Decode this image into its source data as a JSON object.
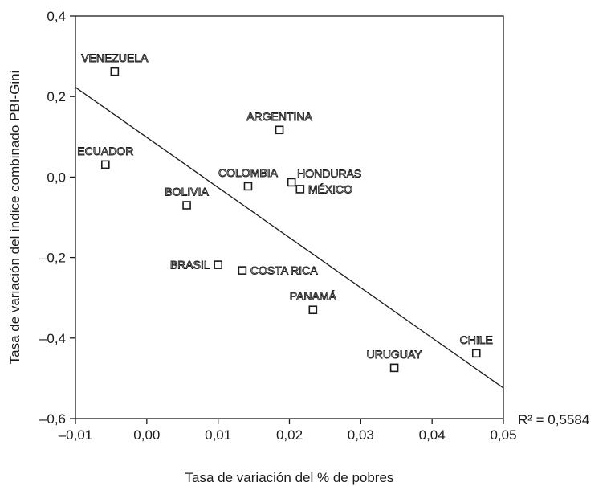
{
  "chart_data": {
    "type": "scatter",
    "title": "",
    "xlabel": "Tasa de variación del % de pobres",
    "ylabel": "Tasa de variación del índice combinado PBI-Gini",
    "xlim": [
      -0.01,
      0.05
    ],
    "ylim": [
      -0.6,
      0.4
    ],
    "x_ticks": [
      -0.01,
      0.0,
      0.01,
      0.02,
      0.03,
      0.04,
      0.05
    ],
    "x_tick_labels": [
      "–0,01",
      "0,00",
      "0,01",
      "0,02",
      "0,03",
      "0,04",
      "0,05"
    ],
    "y_ticks": [
      0.4,
      0.2,
      0.0,
      -0.2,
      -0.4,
      -0.6
    ],
    "y_tick_labels": [
      "0,4",
      "0,2",
      "0,0",
      "–0,2",
      "–0,4",
      "–0,6"
    ],
    "grid": false,
    "legend": "none",
    "marker": "open-square",
    "points": [
      {
        "label": "VENEZUELA",
        "x": -0.0045,
        "y": 0.262,
        "label_pos": "above"
      },
      {
        "label": "ECUADOR",
        "x": -0.0058,
        "y": 0.031,
        "label_pos": "above"
      },
      {
        "label": "ARGENTINA",
        "x": 0.0186,
        "y": 0.117,
        "label_pos": "above"
      },
      {
        "label": "COLOMBIA",
        "x": 0.0142,
        "y": -0.023,
        "label_pos": "above"
      },
      {
        "label": "HONDURAS",
        "x": 0.0203,
        "y": -0.013,
        "label_pos": "upper-right"
      },
      {
        "label": "MÉXICO",
        "x": 0.0215,
        "y": -0.03,
        "label_pos": "right"
      },
      {
        "label": "BOLIVIA",
        "x": 0.0056,
        "y": -0.07,
        "label_pos": "above"
      },
      {
        "label": "BRASIL",
        "x": 0.01,
        "y": -0.218,
        "label_pos": "left"
      },
      {
        "label": "COSTA RICA",
        "x": 0.0134,
        "y": -0.232,
        "label_pos": "right"
      },
      {
        "label": "PANAMÁ",
        "x": 0.0233,
        "y": -0.33,
        "label_pos": "above"
      },
      {
        "label": "URUGUAY",
        "x": 0.0347,
        "y": -0.474,
        "label_pos": "above"
      },
      {
        "label": "CHILE",
        "x": 0.0462,
        "y": -0.438,
        "label_pos": "above"
      }
    ],
    "trendline": {
      "x": [
        -0.01,
        0.05
      ],
      "y": [
        0.223,
        -0.524
      ]
    },
    "annotation": "R² = 0,5584",
    "colors": {
      "axis": "#1a1a1a",
      "marker_fill": "#ffffff",
      "label_fill": "#ffffff"
    }
  }
}
